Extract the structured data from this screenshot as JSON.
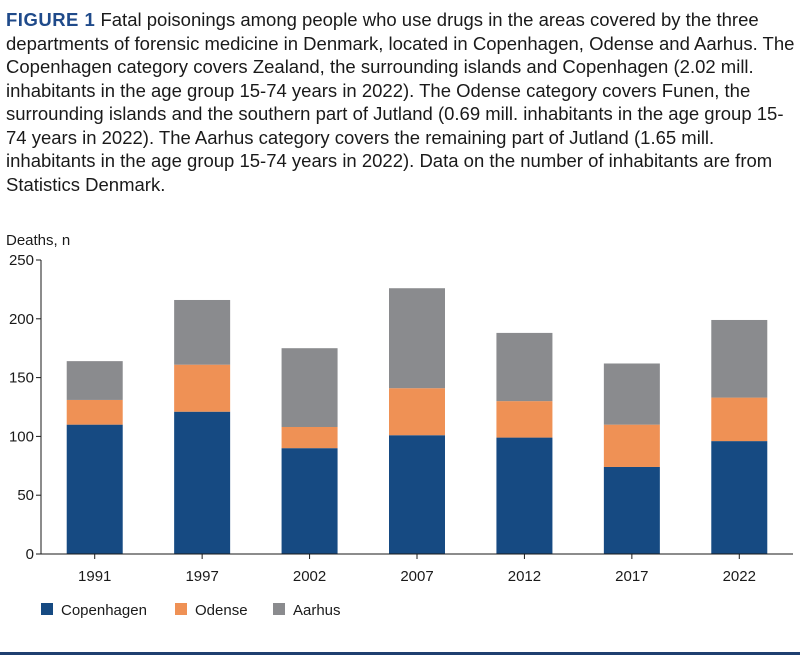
{
  "figure": {
    "label": "FIGURE 1",
    "caption": "Fatal poisonings among people who use drugs in the areas covered by the three departments of forensic medicine in Denmark, located in Copenhagen, Odense and Aarhus. The Copenhagen category covers Zealand, the surrounding islands and Copenhagen (2.02 mill. inhabitants in the age group 15-74 years in 2022). The Odense category covers Funen, the surrounding islands and the southern part of Jutland (0.69 mill. inhabitants in the age group 15-74 years in 2022). The Aarhus category covers the remaining part of Jutland (1.65 mill. inhabitants in the age group 15-74 years in 2022). Data on the number of inhabitants are from Statistics Denmark."
  },
  "chart_data": {
    "type": "bar",
    "stacked": true,
    "title": "",
    "xlabel": "",
    "ylabel": "Deaths, n",
    "ylim": [
      0,
      250
    ],
    "yticks": [
      0,
      50,
      100,
      150,
      200,
      250
    ],
    "categories": [
      "1991",
      "1997",
      "2002",
      "2007",
      "2012",
      "2017",
      "2022"
    ],
    "series": [
      {
        "name": "Copenhagen",
        "color": "#164a82",
        "values": [
          110,
          121,
          90,
          101,
          99,
          74,
          96
        ]
      },
      {
        "name": "Odense",
        "color": "#ef9155",
        "values": [
          21,
          40,
          18,
          40,
          31,
          36,
          37
        ]
      },
      {
        "name": "Aarhus",
        "color": "#8a8b8e",
        "values": [
          33,
          55,
          67,
          85,
          58,
          52,
          66
        ]
      }
    ],
    "grid": false,
    "legend_position": "bottom-left"
  }
}
